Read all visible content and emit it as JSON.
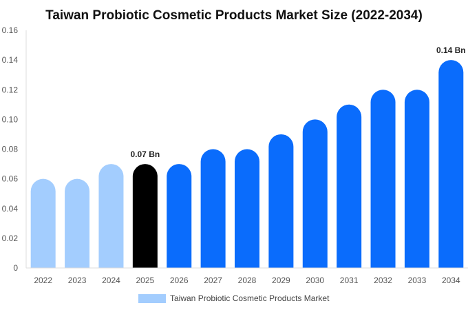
{
  "chart_data": {
    "type": "bar",
    "title": "Taiwan Probiotic Cosmetic Products Market Size (2022-2034)",
    "xlabel": "",
    "ylabel": "",
    "categories": [
      "2022",
      "2023",
      "2024",
      "2025",
      "2026",
      "2027",
      "2028",
      "2029",
      "2030",
      "2031",
      "2032",
      "2033",
      "2034"
    ],
    "values": [
      0.06,
      0.06,
      0.07,
      0.07,
      0.07,
      0.08,
      0.08,
      0.09,
      0.1,
      0.11,
      0.12,
      0.12,
      0.14
    ],
    "ylim": [
      0,
      0.16
    ],
    "yticks": [
      "0",
      "0.02",
      "0.04",
      "0.06",
      "0.08",
      "0.10",
      "0.12",
      "0.14",
      "0.16"
    ],
    "data_labels": [
      {
        "category": "2025",
        "text": "0.07 Bn"
      },
      {
        "category": "2034",
        "text": "0.14 Bn"
      }
    ],
    "series": [
      {
        "name": "Taiwan Probiotic Cosmetic Products Market",
        "values": [
          0.06,
          0.06,
          0.07,
          0.07,
          0.07,
          0.08,
          0.08,
          0.09,
          0.1,
          0.11,
          0.12,
          0.12,
          0.14
        ]
      }
    ],
    "colors": {
      "historical": "#a3cdfe",
      "current": "#000000",
      "forecast": "#0a6cfc",
      "legend": "#a3cdfe"
    },
    "bar_color_roles": [
      "historical",
      "historical",
      "historical",
      "current",
      "forecast",
      "forecast",
      "forecast",
      "forecast",
      "forecast",
      "forecast",
      "forecast",
      "forecast",
      "forecast"
    ],
    "grid": false,
    "legend_position": "bottom"
  }
}
